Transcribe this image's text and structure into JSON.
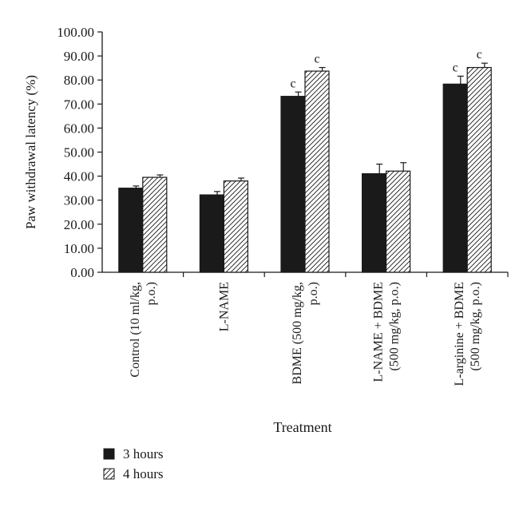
{
  "chart_data": {
    "type": "bar",
    "title": "",
    "xlabel": "Treatment",
    "ylabel": "Paw withdrawal latency (%)",
    "ylim": [
      0,
      100
    ],
    "yticks": [
      "0.00",
      "10.00",
      "20.00",
      "30.00",
      "40.00",
      "50.00",
      "60.00",
      "70.00",
      "80.00",
      "90.00",
      "100.00"
    ],
    "categories": [
      [
        "Control (10 ml/kg,",
        "p.o.)"
      ],
      [
        "L-NAME"
      ],
      [
        "BDME (500 mg/kg,",
        "p.o.)"
      ],
      [
        "L-NAME + BDME",
        "(500 mg/kg, p.o.)"
      ],
      [
        "L-arginine + BDME",
        "(500 mg/kg, p.o.)"
      ]
    ],
    "series": [
      {
        "name": "3 hours",
        "fill": "solid",
        "color": "#1a1a1a",
        "values": [
          35.0,
          32.2,
          73.2,
          41.0,
          78.3
        ],
        "errors": [
          0.9,
          1.4,
          1.8,
          4.0,
          3.3
        ],
        "annotations": [
          "",
          "",
          "c",
          "",
          "c"
        ]
      },
      {
        "name": "4 hours",
        "fill": "hatched",
        "color": "#ffffff",
        "values": [
          39.5,
          38.0,
          83.7,
          42.1,
          85.2
        ],
        "errors": [
          1.0,
          1.2,
          1.5,
          3.5,
          1.8
        ],
        "annotations": [
          "",
          "",
          "c",
          "",
          "c"
        ]
      }
    ],
    "legend": {
      "position": "bottom-left"
    },
    "grid": false
  }
}
